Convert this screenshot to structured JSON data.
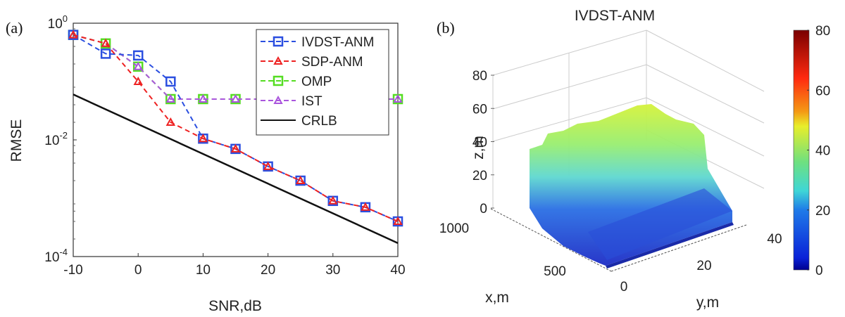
{
  "chart_data": [
    {
      "panel_label": "(a)",
      "type": "line",
      "title": "",
      "xlabel": "SNR,dB",
      "ylabel": "RMSE",
      "xscale": "linear",
      "yscale": "log",
      "xlim": [
        -10,
        40
      ],
      "ylim": [
        0.0001,
        1
      ],
      "xticks": [
        "-10",
        "0",
        "10",
        "20",
        "30",
        "40"
      ],
      "xtick_values": [
        -10,
        0,
        10,
        20,
        30,
        40
      ],
      "yticks": [
        {
          "base": "10",
          "exp": "0",
          "value": 1
        },
        {
          "base": "10",
          "exp": "-2",
          "value": 0.01
        },
        {
          "base": "10",
          "exp": "-4",
          "value": 0.0001
        }
      ],
      "grid": false,
      "legend_position": "top-right",
      "x": [
        -10,
        -5,
        0,
        5,
        10,
        15,
        20,
        25,
        30,
        35,
        40
      ],
      "series": [
        {
          "name": "IVDST-ANM",
          "color": "#2b4fe0",
          "marker": "square",
          "dash": true,
          "values": [
            0.63,
            0.3,
            0.28,
            0.1,
            0.0105,
            0.007,
            0.0035,
            0.002,
            0.0009,
            0.0007,
            0.0004
          ]
        },
        {
          "name": "SDP-ANM",
          "color": "#ee2222",
          "marker": "triangle",
          "dash": true,
          "values": [
            0.63,
            0.45,
            0.1,
            0.02,
            0.0105,
            0.007,
            0.0035,
            0.002,
            0.0009,
            0.0007,
            0.0004
          ]
        },
        {
          "name": "OMP",
          "color": "#55dd22",
          "marker": "square",
          "dash": true,
          "values": [
            0.63,
            0.45,
            0.18,
            0.05,
            0.05,
            0.05,
            0.05,
            0.05,
            0.05,
            0.05,
            0.05
          ]
        },
        {
          "name": "IST",
          "color": "#aa55dd",
          "marker": "triangle",
          "dash": true,
          "values": [
            0.63,
            0.45,
            0.18,
            0.05,
            0.05,
            0.05,
            0.05,
            0.05,
            0.05,
            0.05,
            0.05
          ]
        },
        {
          "name": "CRLB",
          "color": "#111111",
          "marker": "none",
          "dash": false,
          "values": [
            0.06,
            0.038,
            0.024,
            0.015,
            0.0095,
            0.006,
            0.0037,
            0.0023,
            0.0011,
            0.00045,
            0.00017
          ]
        }
      ]
    },
    {
      "panel_label": "(b)",
      "type": "scatter",
      "title": "IVDST-ANM",
      "xlabel": "x,m",
      "ylabel": "y,m",
      "zlabel": "z,m",
      "xticks": [
        "1000",
        "500"
      ],
      "yticks": [
        "0",
        "20",
        "40"
      ],
      "zticks": [
        "0",
        "20",
        "40",
        "60",
        "80"
      ],
      "zlim": [
        0,
        80
      ],
      "colorbar": {
        "min": 0,
        "max": 80,
        "ticks": [
          "0",
          "20",
          "40",
          "60",
          "80"
        ],
        "colormap": "jet"
      },
      "description": "3D point cloud colored by height (z), dense buildings mostly 0-50 m"
    }
  ]
}
